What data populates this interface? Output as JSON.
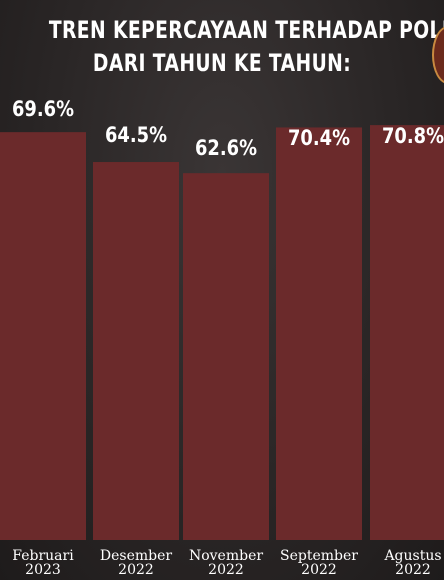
{
  "title_lines": [
    "TREN KEPERCAYAAN TERHADAP POLRI",
    "DARI TAHUN KE TAHUN:"
  ],
  "chart_data": {
    "type": "bar",
    "title": "TREN KEPERCAYAAN TERHADAP POLRI DARI TAHUN KE TAHUN:",
    "categories": [
      [
        "Februari",
        "2023"
      ],
      [
        "Desember",
        "2022"
      ],
      [
        "November",
        "2022"
      ],
      [
        "September",
        "2022"
      ],
      [
        "Agustus",
        "2022"
      ]
    ],
    "values": [
      69.6,
      64.5,
      62.6,
      70.4,
      70.8
    ],
    "value_labels": [
      "69.6%",
      "64.5%",
      "62.6%",
      "70.4%",
      "70.8%"
    ],
    "ylim": [
      0,
      100
    ],
    "bar_color": "#6b2a2b",
    "background_color": "#2b2727",
    "grid": false,
    "legend": "none"
  }
}
